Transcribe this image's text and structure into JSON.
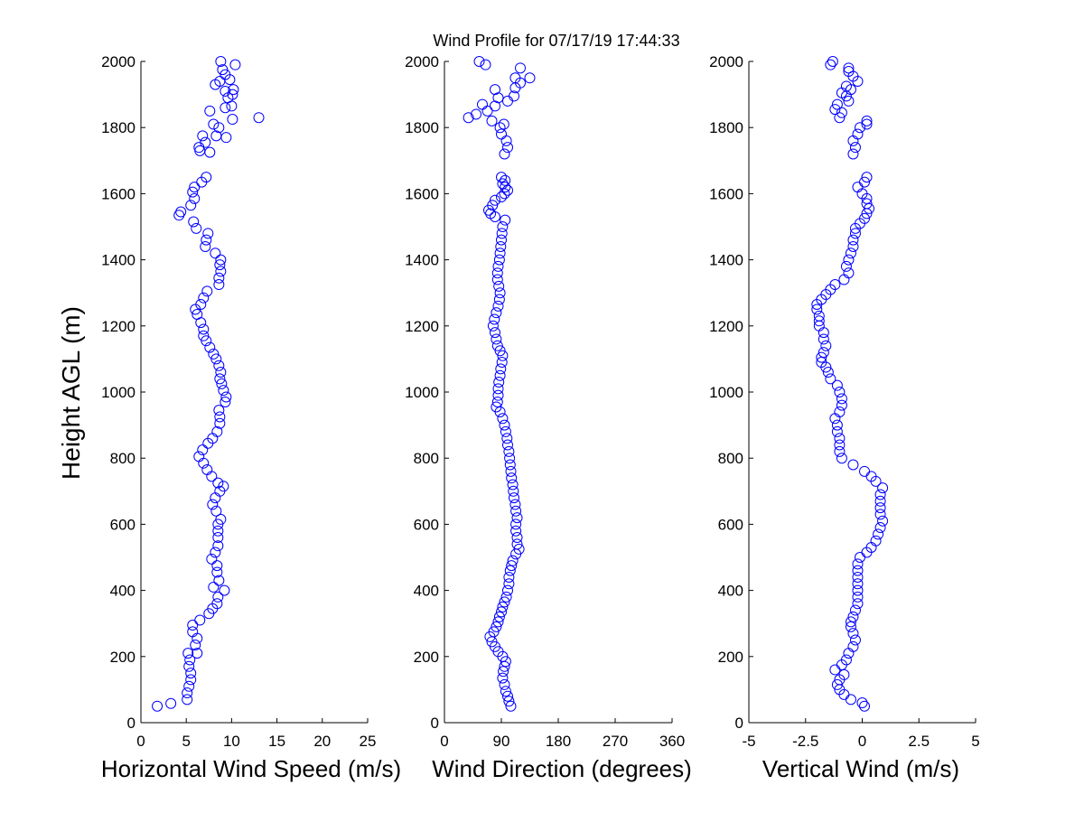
{
  "title": "Wind Profile for  07/17/19 17:44:33",
  "colors": {
    "marker": "#0000ff",
    "axis": "#000000",
    "background": "#ffffff"
  },
  "chart_data": [
    {
      "type": "scatter",
      "id": "speed",
      "xlabel": "Horizontal Wind Speed (m/s)",
      "ylabel": "Height AGL (m)",
      "xlim": [
        0,
        25
      ],
      "ylim": [
        0,
        2000
      ],
      "xticks": [
        0,
        5,
        10,
        15,
        20,
        25
      ],
      "xtick_labels": [
        "0",
        "5",
        "10",
        "15",
        "20",
        "25"
      ],
      "yticks": [
        0,
        200,
        400,
        600,
        800,
        1000,
        1200,
        1400,
        1600,
        1800,
        2000
      ],
      "ytick_labels": [
        "0",
        "200",
        "400",
        "600",
        "800",
        "1000",
        "1200",
        "1400",
        "1600",
        "1800",
        "2000"
      ],
      "points": [
        [
          1.8,
          50
        ],
        [
          3.3,
          58
        ],
        [
          5.1,
          70
        ],
        [
          5.1,
          90
        ],
        [
          5.3,
          110
        ],
        [
          5.5,
          130
        ],
        [
          5.5,
          150
        ],
        [
          5.3,
          170
        ],
        [
          5.4,
          190
        ],
        [
          5.2,
          210
        ],
        [
          6.2,
          210
        ],
        [
          6.0,
          235
        ],
        [
          6.2,
          255
        ],
        [
          5.7,
          275
        ],
        [
          5.7,
          295
        ],
        [
          6.5,
          310
        ],
        [
          7.5,
          330
        ],
        [
          7.9,
          345
        ],
        [
          8.4,
          360
        ],
        [
          8.5,
          380
        ],
        [
          8.0,
          410
        ],
        [
          9.2,
          400
        ],
        [
          8.6,
          430
        ],
        [
          8.4,
          455
        ],
        [
          8.4,
          475
        ],
        [
          7.8,
          495
        ],
        [
          8.2,
          515
        ],
        [
          8.5,
          535
        ],
        [
          8.5,
          560
        ],
        [
          8.5,
          580
        ],
        [
          8.5,
          600
        ],
        [
          8.8,
          615
        ],
        [
          8.3,
          640
        ],
        [
          7.9,
          660
        ],
        [
          8.2,
          680
        ],
        [
          8.7,
          700
        ],
        [
          9.1,
          715
        ],
        [
          8.5,
          725
        ],
        [
          7.8,
          745
        ],
        [
          7.3,
          765
        ],
        [
          6.9,
          785
        ],
        [
          6.4,
          805
        ],
        [
          6.8,
          825
        ],
        [
          7.4,
          845
        ],
        [
          7.9,
          860
        ],
        [
          8.4,
          880
        ],
        [
          8.7,
          905
        ],
        [
          8.7,
          925
        ],
        [
          8.6,
          945
        ],
        [
          9.3,
          970
        ],
        [
          9.4,
          985
        ],
        [
          9.1,
          1005
        ],
        [
          8.9,
          1025
        ],
        [
          8.7,
          1040
        ],
        [
          8.8,
          1060
        ],
        [
          8.6,
          1080
        ],
        [
          8.3,
          1100
        ],
        [
          8.0,
          1115
        ],
        [
          7.6,
          1135
        ],
        [
          7.2,
          1155
        ],
        [
          6.9,
          1170
        ],
        [
          6.9,
          1190
        ],
        [
          6.6,
          1210
        ],
        [
          6.2,
          1235
        ],
        [
          6.0,
          1250
        ],
        [
          6.6,
          1265
        ],
        [
          6.9,
          1285
        ],
        [
          7.3,
          1305
        ],
        [
          8.6,
          1325
        ],
        [
          8.6,
          1345
        ],
        [
          8.8,
          1365
        ],
        [
          8.7,
          1385
        ],
        [
          8.8,
          1400
        ],
        [
          8.2,
          1420
        ],
        [
          7.1,
          1440
        ],
        [
          7.2,
          1460
        ],
        [
          7.4,
          1480
        ],
        [
          6.1,
          1495
        ],
        [
          5.8,
          1515
        ],
        [
          4.2,
          1535
        ],
        [
          4.4,
          1545
        ],
        [
          5.5,
          1565
        ],
        [
          5.9,
          1585
        ],
        [
          5.7,
          1605
        ],
        [
          5.9,
          1620
        ],
        [
          6.7,
          1635
        ],
        [
          7.2,
          1650
        ],
        [
          6.5,
          1730
        ],
        [
          7.6,
          1725
        ],
        [
          7.1,
          1755
        ],
        [
          6.4,
          1740
        ],
        [
          6.8,
          1775
        ],
        [
          8.3,
          1775
        ],
        [
          9.4,
          1770
        ],
        [
          8.0,
          1810
        ],
        [
          8.6,
          1800
        ],
        [
          10.1,
          1825
        ],
        [
          13.0,
          1830
        ],
        [
          7.6,
          1850
        ],
        [
          9.3,
          1860
        ],
        [
          10.0,
          1865
        ],
        [
          9.6,
          1890
        ],
        [
          10.1,
          1900
        ],
        [
          9.3,
          1910
        ],
        [
          10.2,
          1915
        ],
        [
          8.2,
          1930
        ],
        [
          8.7,
          1940
        ],
        [
          9.8,
          1945
        ],
        [
          9.3,
          1960
        ],
        [
          9.0,
          1975
        ],
        [
          10.4,
          1990
        ],
        [
          8.8,
          2000
        ]
      ]
    },
    {
      "type": "scatter",
      "id": "direction",
      "xlabel": "Wind Direction (degrees)",
      "xlim": [
        0,
        360
      ],
      "ylim": [
        0,
        2000
      ],
      "xticks": [
        0,
        90,
        180,
        270,
        360
      ],
      "xtick_labels": [
        "0",
        "90",
        "180",
        "270",
        "360"
      ],
      "yticks": [
        0,
        200,
        400,
        600,
        800,
        1000,
        1200,
        1400,
        1600,
        1800,
        2000
      ],
      "ytick_labels": [
        "0",
        "200",
        "400",
        "600",
        "800",
        "1000",
        "1200",
        "1400",
        "1600",
        "1800",
        "2000"
      ],
      "points": [
        [
          105,
          50
        ],
        [
          102,
          65
        ],
        [
          100,
          80
        ],
        [
          97,
          95
        ],
        [
          95,
          115
        ],
        [
          92,
          135
        ],
        [
          93,
          155
        ],
        [
          95,
          170
        ],
        [
          97,
          185
        ],
        [
          92,
          200
        ],
        [
          85,
          215
        ],
        [
          80,
          230
        ],
        [
          75,
          245
        ],
        [
          72,
          260
        ],
        [
          78,
          275
        ],
        [
          82,
          290
        ],
        [
          85,
          305
        ],
        [
          87,
          320
        ],
        [
          90,
          335
        ],
        [
          92,
          350
        ],
        [
          95,
          365
        ],
        [
          98,
          380
        ],
        [
          100,
          400
        ],
        [
          102,
          420
        ],
        [
          102,
          440
        ],
        [
          104,
          460
        ],
        [
          106,
          475
        ],
        [
          108,
          490
        ],
        [
          113,
          510
        ],
        [
          118,
          525
        ],
        [
          115,
          540
        ],
        [
          115,
          560
        ],
        [
          113,
          580
        ],
        [
          113,
          600
        ],
        [
          115,
          620
        ],
        [
          113,
          640
        ],
        [
          112,
          660
        ],
        [
          110,
          680
        ],
        [
          109,
          700
        ],
        [
          108,
          720
        ],
        [
          106,
          740
        ],
        [
          105,
          760
        ],
        [
          104,
          780
        ],
        [
          103,
          800
        ],
        [
          102,
          820
        ],
        [
          100,
          840
        ],
        [
          99,
          860
        ],
        [
          97,
          880
        ],
        [
          95,
          900
        ],
        [
          92,
          920
        ],
        [
          88,
          940
        ],
        [
          82,
          955
        ],
        [
          84,
          970
        ],
        [
          85,
          990
        ],
        [
          85,
          1010
        ],
        [
          86,
          1030
        ],
        [
          88,
          1050
        ],
        [
          89,
          1070
        ],
        [
          91,
          1090
        ],
        [
          92,
          1110
        ],
        [
          88,
          1125
        ],
        [
          84,
          1140
        ],
        [
          82,
          1160
        ],
        [
          80,
          1180
        ],
        [
          77,
          1200
        ],
        [
          79,
          1220
        ],
        [
          82,
          1240
        ],
        [
          85,
          1260
        ],
        [
          87,
          1280
        ],
        [
          88,
          1300
        ],
        [
          86,
          1320
        ],
        [
          84,
          1340
        ],
        [
          84,
          1360
        ],
        [
          85,
          1380
        ],
        [
          87,
          1400
        ],
        [
          88,
          1420
        ],
        [
          89,
          1440
        ],
        [
          90,
          1460
        ],
        [
          91,
          1480
        ],
        [
          92,
          1500
        ],
        [
          96,
          1520
        ],
        [
          80,
          1530
        ],
        [
          73,
          1540
        ],
        [
          70,
          1550
        ],
        [
          76,
          1565
        ],
        [
          80,
          1580
        ],
        [
          90,
          1590
        ],
        [
          95,
          1600
        ],
        [
          100,
          1610
        ],
        [
          96,
          1620
        ],
        [
          92,
          1630
        ],
        [
          96,
          1640
        ],
        [
          90,
          1650
        ],
        [
          95,
          1720
        ],
        [
          100,
          1740
        ],
        [
          98,
          1760
        ],
        [
          90,
          1780
        ],
        [
          88,
          1800
        ],
        [
          94,
          1810
        ],
        [
          75,
          1820
        ],
        [
          38,
          1830
        ],
        [
          50,
          1840
        ],
        [
          68,
          1850
        ],
        [
          80,
          1865
        ],
        [
          60,
          1870
        ],
        [
          100,
          1880
        ],
        [
          85,
          1890
        ],
        [
          110,
          1895
        ],
        [
          80,
          1915
        ],
        [
          112,
          1920
        ],
        [
          120,
          1935
        ],
        [
          112,
          1950
        ],
        [
          135,
          1950
        ],
        [
          120,
          1980
        ],
        [
          65,
          1990
        ],
        [
          55,
          2000
        ]
      ]
    },
    {
      "type": "scatter",
      "id": "vertical",
      "xlabel": "Vertical Wind (m/s)",
      "xlim": [
        -5,
        5
      ],
      "ylim": [
        0,
        2000
      ],
      "xticks": [
        -5,
        -2.5,
        0,
        2.5,
        5
      ],
      "xtick_labels": [
        "-5",
        "-2.5",
        "0",
        "2.5",
        "5"
      ],
      "yticks": [
        0,
        200,
        400,
        600,
        800,
        1000,
        1200,
        1400,
        1600,
        1800,
        2000
      ],
      "ytick_labels": [
        "0",
        "200",
        "400",
        "600",
        "800",
        "1000",
        "1200",
        "1400",
        "1600",
        "1800",
        "2000"
      ],
      "points": [
        [
          0.1,
          50
        ],
        [
          0.0,
          60
        ],
        [
          -0.5,
          70
        ],
        [
          -0.8,
          85
        ],
        [
          -1.0,
          100
        ],
        [
          -1.1,
          115
        ],
        [
          -1.0,
          130
        ],
        [
          -0.8,
          145
        ],
        [
          -1.2,
          160
        ],
        [
          -0.9,
          175
        ],
        [
          -0.7,
          190
        ],
        [
          -0.6,
          210
        ],
        [
          -0.4,
          230
        ],
        [
          -0.3,
          250
        ],
        [
          -0.4,
          270
        ],
        [
          -0.5,
          290
        ],
        [
          -0.5,
          305
        ],
        [
          -0.4,
          320
        ],
        [
          -0.3,
          340
        ],
        [
          -0.2,
          360
        ],
        [
          -0.2,
          380
        ],
        [
          -0.2,
          400
        ],
        [
          -0.2,
          420
        ],
        [
          -0.2,
          440
        ],
        [
          -0.2,
          460
        ],
        [
          -0.2,
          480
        ],
        [
          -0.1,
          500
        ],
        [
          0.2,
          515
        ],
        [
          0.4,
          530
        ],
        [
          0.6,
          550
        ],
        [
          0.7,
          570
        ],
        [
          0.8,
          590
        ],
        [
          0.9,
          610
        ],
        [
          0.8,
          630
        ],
        [
          0.8,
          650
        ],
        [
          0.8,
          670
        ],
        [
          0.8,
          690
        ],
        [
          0.9,
          710
        ],
        [
          0.6,
          730
        ],
        [
          0.4,
          745
        ],
        [
          0.1,
          760
        ],
        [
          -0.4,
          780
        ],
        [
          -0.9,
          800
        ],
        [
          -1.0,
          820
        ],
        [
          -1.0,
          840
        ],
        [
          -1.0,
          860
        ],
        [
          -1.1,
          880
        ],
        [
          -1.1,
          900
        ],
        [
          -1.2,
          920
        ],
        [
          -1.0,
          940
        ],
        [
          -0.9,
          960
        ],
        [
          -0.9,
          980
        ],
        [
          -1.0,
          1000
        ],
        [
          -1.1,
          1020
        ],
        [
          -1.4,
          1040
        ],
        [
          -1.5,
          1060
        ],
        [
          -1.6,
          1075
        ],
        [
          -1.8,
          1090
        ],
        [
          -1.8,
          1105
        ],
        [
          -1.7,
          1120
        ],
        [
          -1.6,
          1140
        ],
        [
          -1.7,
          1160
        ],
        [
          -1.7,
          1180
        ],
        [
          -1.9,
          1200
        ],
        [
          -1.9,
          1215
        ],
        [
          -1.9,
          1230
        ],
        [
          -2.0,
          1250
        ],
        [
          -2.0,
          1265
        ],
        [
          -1.8,
          1280
        ],
        [
          -1.6,
          1295
        ],
        [
          -1.4,
          1310
        ],
        [
          -1.2,
          1325
        ],
        [
          -0.8,
          1340
        ],
        [
          -0.6,
          1360
        ],
        [
          -0.7,
          1380
        ],
        [
          -0.6,
          1400
        ],
        [
          -0.5,
          1420
        ],
        [
          -0.4,
          1440
        ],
        [
          -0.4,
          1460
        ],
        [
          -0.3,
          1480
        ],
        [
          -0.3,
          1495
        ],
        [
          -0.1,
          1510
        ],
        [
          0.1,
          1525
        ],
        [
          0.2,
          1540
        ],
        [
          0.3,
          1555
        ],
        [
          0.2,
          1570
        ],
        [
          0.2,
          1585
        ],
        [
          0.0,
          1600
        ],
        [
          -0.2,
          1620
        ],
        [
          0.1,
          1635
        ],
        [
          0.2,
          1650
        ],
        [
          -0.4,
          1720
        ],
        [
          -0.3,
          1740
        ],
        [
          -0.4,
          1760
        ],
        [
          -0.2,
          1780
        ],
        [
          -0.1,
          1800
        ],
        [
          0.2,
          1810
        ],
        [
          0.2,
          1820
        ],
        [
          -1.0,
          1830
        ],
        [
          -0.9,
          1845
        ],
        [
          -1.2,
          1855
        ],
        [
          -1.1,
          1870
        ],
        [
          -0.6,
          1880
        ],
        [
          -0.7,
          1895
        ],
        [
          -0.9,
          1905
        ],
        [
          -0.5,
          1915
        ],
        [
          -0.7,
          1925
        ],
        [
          -0.2,
          1940
        ],
        [
          -0.4,
          1955
        ],
        [
          -0.6,
          1970
        ],
        [
          -0.6,
          1980
        ],
        [
          -1.4,
          1990
        ],
        [
          -1.3,
          2000
        ]
      ]
    }
  ]
}
